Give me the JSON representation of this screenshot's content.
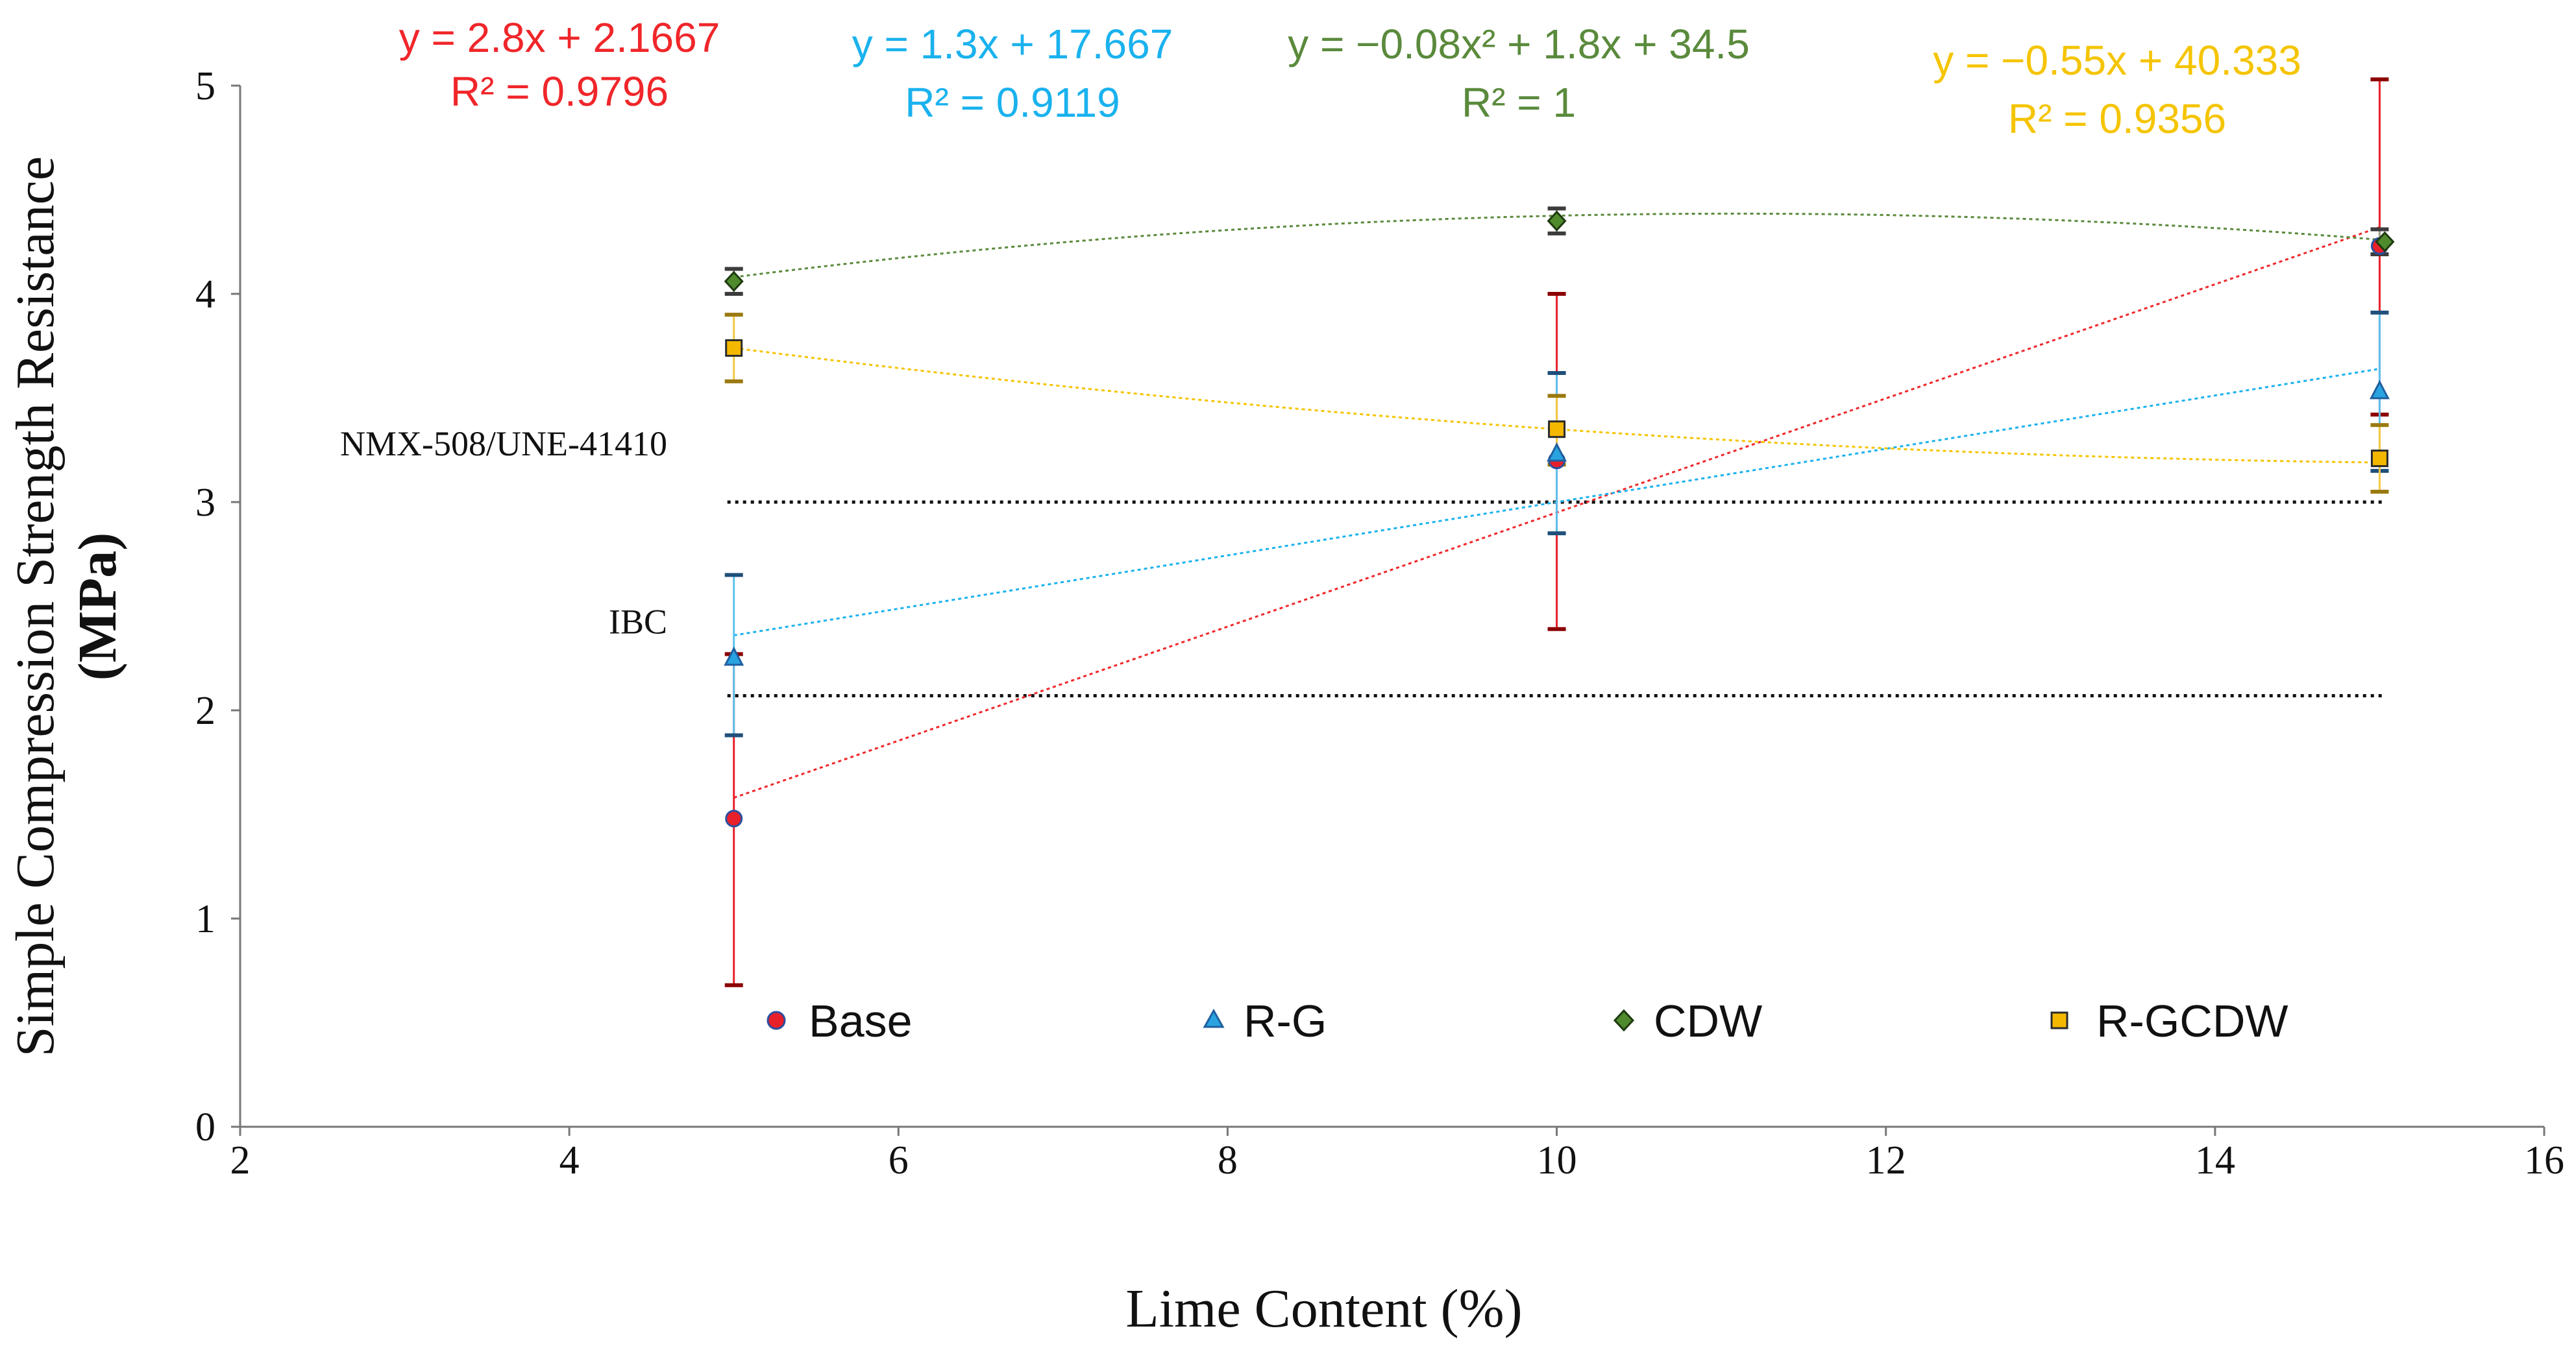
{
  "chart_data": {
    "type": "scatter",
    "xlabel": "Lime Content (%)",
    "ylabel_line1": "Simple Compression Strength Resistance",
    "ylabel_line2": "(MPa)",
    "xlim": [
      2,
      16
    ],
    "ylim": [
      0,
      5
    ],
    "xticks": [
      2,
      4,
      6,
      8,
      10,
      12,
      14,
      16
    ],
    "yticks": [
      0,
      1,
      2,
      3,
      4,
      5
    ],
    "grid": false,
    "legend_position": "bottom-inside",
    "reference_lines": [
      {
        "name": "NMX-508/UNE-41410",
        "label": "NMX-508/UNE-41410",
        "y": 3.0
      },
      {
        "name": "IBC",
        "label": "IBC",
        "y": 2.07
      }
    ],
    "series": [
      {
        "name": "Base",
        "key": "base",
        "marker": "circle",
        "color": "#e8202a",
        "edge": "#2c4fa0",
        "err_color": "#e8202a",
        "cap_color": "#8b0000",
        "x": [
          5,
          10,
          15
        ],
        "values": [
          1.48,
          3.2,
          4.23
        ],
        "err_low": [
          0.68,
          2.39,
          3.42
        ],
        "err_high": [
          2.27,
          4.0,
          5.03
        ],
        "trend": {
          "kind": "linear",
          "x_range": [
            5,
            15
          ],
          "y_start": 1.58,
          "y_end": 4.32,
          "equation": "y = 2.8x + 2.1667",
          "r2": "R² = 0.9796",
          "color": "#f0262a"
        }
      },
      {
        "name": "R-G",
        "key": "rg",
        "marker": "triangle",
        "color": "#29a3e0",
        "edge": "#1f5fa0",
        "err_color": "#5bc2ef",
        "cap_color": "#1f4f7a",
        "x": [
          5,
          10,
          15
        ],
        "values": [
          2.25,
          3.23,
          3.53
        ],
        "err_low": [
          1.88,
          2.85,
          3.15
        ],
        "err_high": [
          2.65,
          3.62,
          3.91
        ],
        "trend": {
          "kind": "linear",
          "x_range": [
            5,
            15
          ],
          "y_start": 2.36,
          "y_end": 3.64,
          "equation": "y = 1.3x + 17.667",
          "r2": "R² = 0.9119",
          "color": "#1ab2ee"
        }
      },
      {
        "name": "CDW",
        "key": "cdw",
        "marker": "diamond",
        "color": "#4f8a2c",
        "edge": "#1e3a10",
        "err_color": "#9aa68f",
        "cap_color": "#3c3c3c",
        "x": [
          5,
          10,
          15
        ],
        "values": [
          4.06,
          4.35,
          4.25
        ],
        "err_low": [
          4.0,
          4.29,
          4.19
        ],
        "err_high": [
          4.12,
          4.41,
          4.31
        ],
        "trend": {
          "kind": "poly2",
          "x_range": [
            5,
            15
          ],
          "y_start": 4.08,
          "y_peak": 4.38,
          "y_end": 4.26,
          "equation": "y = −0.08x² + 1.8x + 34.5",
          "r2": "R² = 1",
          "color": "#5a8a3c"
        }
      },
      {
        "name": "R-GCDW",
        "key": "rgcdw",
        "marker": "square",
        "color": "#f5b800",
        "edge": "#2b2b2b",
        "err_color": "#f5c842",
        "cap_color": "#9a7a10",
        "x": [
          5,
          10,
          15
        ],
        "values": [
          3.74,
          3.35,
          3.21
        ],
        "err_low": [
          3.58,
          3.18,
          3.05
        ],
        "err_high": [
          3.9,
          3.51,
          3.37
        ],
        "trend": {
          "kind": "poly2",
          "x_range": [
            5,
            15
          ],
          "y_start": 3.74,
          "y_mid": 3.35,
          "y_end": 3.19,
          "equation": "y = −0.55x + 40.333",
          "r2": "R² = 0.9356",
          "color": "#f5c400"
        }
      }
    ]
  }
}
